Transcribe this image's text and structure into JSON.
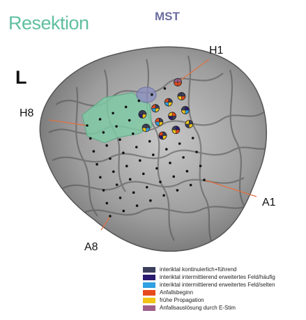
{
  "title": "Resektion",
  "subtitle": "MST",
  "hemisphere": "L",
  "labels": {
    "h1": "H1",
    "h8": "H8",
    "a1": "A1",
    "a8": "A8"
  },
  "colors": {
    "resection": "#7fcaa6",
    "mst": "#8a8fc0",
    "label_lines": "#e07040"
  },
  "legend": [
    {
      "label": "interiktal kontinuierlich+führend",
      "color": "#3b3f5c"
    },
    {
      "label": "interiktal intermittierend erweitertes Feld/häufig",
      "color": "#2a1a70"
    },
    {
      "label": "interiktal intermittierend erweitertes Feld/selten",
      "color": "#2fa0e0"
    },
    {
      "label": "Anfallsbeginn",
      "color": "#e64a1c"
    },
    {
      "label": "frühe Propagation",
      "color": "#f2c418"
    },
    {
      "label": "Anfallsauslösung durch E-Stim",
      "color": "#a0608a"
    }
  ]
}
